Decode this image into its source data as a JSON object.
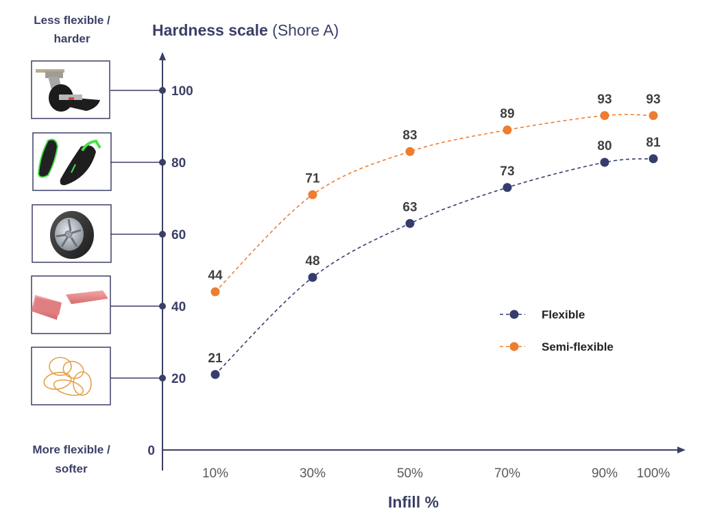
{
  "colors": {
    "axis": "#3b3f66",
    "flexible": "#353c6e",
    "semi_flexible": "#ed7d31",
    "data_label": "#404040",
    "tick_label": "#595959"
  },
  "annotations": {
    "top_left_line1": "Less flexible /",
    "top_left_line2": "harder",
    "bottom_left_line1": "More flexible /",
    "bottom_left_line2": "softer"
  },
  "reference_images": [
    {
      "name": "caster-wheel",
      "level": 100
    },
    {
      "name": "sandals",
      "level": 80
    },
    {
      "name": "car-tire",
      "level": 60
    },
    {
      "name": "erasers",
      "level": 40
    },
    {
      "name": "rubber-bands",
      "level": 20
    }
  ],
  "chart_data": {
    "type": "line",
    "title_bold": "Hardness scale",
    "title_rest": " (Shore A)",
    "title": "Hardness scale (Shore A)",
    "xlabel": "Infill %",
    "ylabel": "Hardness scale (Shore A)",
    "x": [
      10,
      30,
      50,
      70,
      90,
      100
    ],
    "x_tick_labels": [
      "10%",
      "30%",
      "50%",
      "70%",
      "90%",
      "100%"
    ],
    "y_ticks": [
      0,
      20,
      40,
      60,
      80,
      100
    ],
    "y_tick_labels": [
      "0",
      "20",
      "40",
      "60",
      "80",
      "100"
    ],
    "ylim": [
      0,
      100
    ],
    "xlim": [
      0,
      105
    ],
    "grid": false,
    "legend_position": "center-right",
    "series": [
      {
        "name": "Flexible",
        "values": [
          21,
          48,
          63,
          73,
          80,
          81
        ],
        "style": "dashed-marker"
      },
      {
        "name": "Semi-flexible",
        "values": [
          44,
          71,
          83,
          89,
          93,
          93
        ],
        "style": "dashed-marker"
      }
    ]
  }
}
